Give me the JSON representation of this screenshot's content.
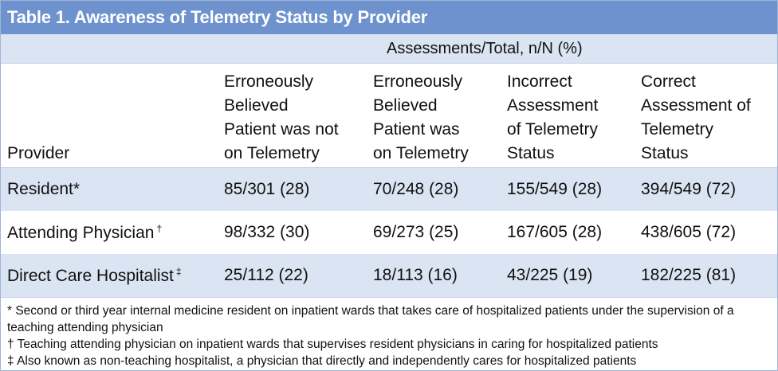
{
  "title": "Table 1. Awareness of Telemetry Status by Provider",
  "subheader": "Assessments/Total, n/N (%)",
  "columns": {
    "provider": "Provider",
    "c1": [
      "Erroneously",
      "Believed",
      "Patient was not",
      "on Telemetry"
    ],
    "c2": [
      "Erroneously",
      "Believed",
      "Patient was",
      "on Telemetry"
    ],
    "c3": [
      "Incorrect",
      "Assessment",
      "of Telemetry",
      "Status"
    ],
    "c4": [
      "Correct",
      "Assessment of",
      "Telemetry",
      "Status"
    ]
  },
  "rows": [
    {
      "provider": "Resident*",
      "mark": "",
      "v1": "85/301 (28)",
      "v2": "70/248 (28)",
      "v3": "155/549 (28)",
      "v4": "394/549 (72)"
    },
    {
      "provider": "Attending Physician",
      "mark": "†",
      "v1": "98/332 (30)",
      "v2": "69/273 (25)",
      "v3": "167/605 (28)",
      "v4": "438/605 (72)"
    },
    {
      "provider": "Direct Care Hospitalist",
      "mark": "‡",
      "v1": "25/112 (22)",
      "v2": "18/113 (16)",
      "v3": "43/225 (19)",
      "v4": "182/225 (81)"
    }
  ],
  "footnotes": [
    "* Second or third year internal medicine resident on inpatient wards that takes care of hospitalized patients under the supervision of a teaching attending physician",
    "† Teaching attending physician on inpatient wards that supervises resident physicians in caring for hospitalized patients",
    "‡ Also known as non-teaching hospitalist, a physician that directly and independently cares for hospitalized patients"
  ]
}
